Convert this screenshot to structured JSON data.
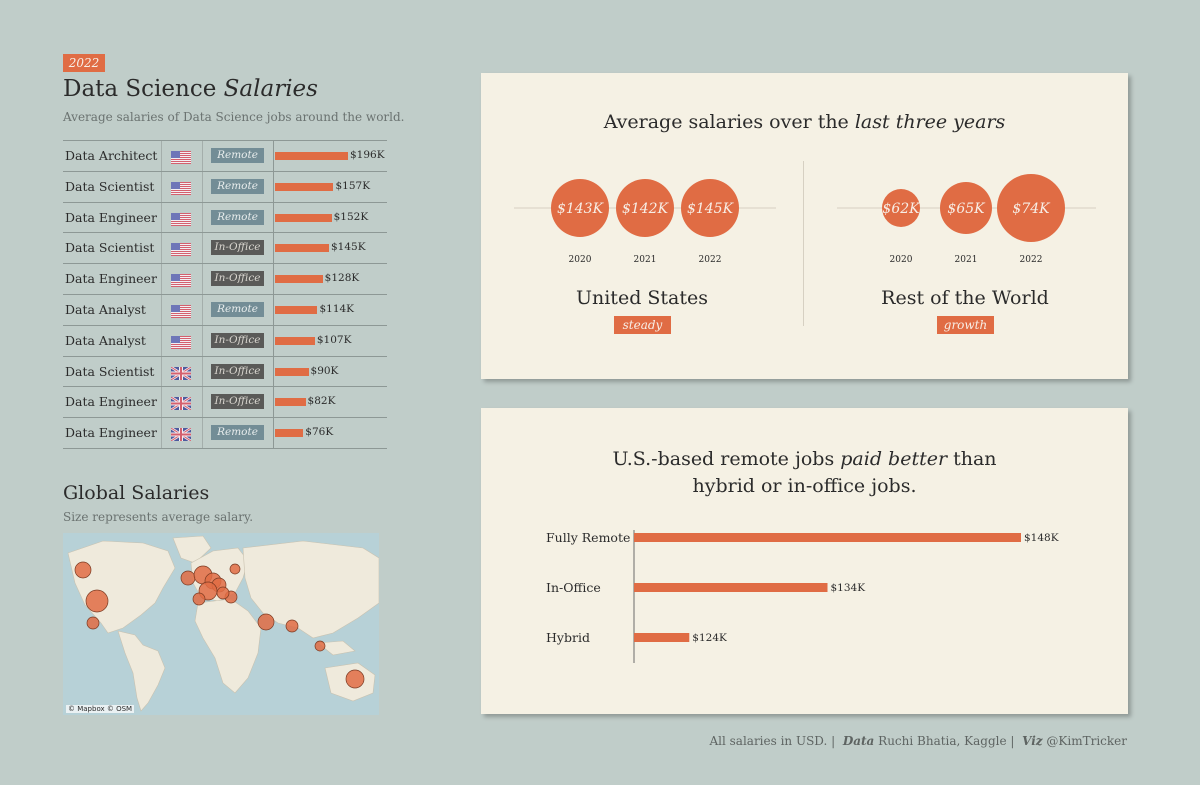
{
  "header": {
    "year_tag": "2022",
    "title_plain": "Data Science",
    "title_italic": "Salaries",
    "subtitle": "Average salaries of Data Science jobs around the world."
  },
  "table": {
    "rows": [
      {
        "job": "Data Architect",
        "country": "US",
        "mode": "Remote",
        "salary": 196,
        "label": "$196K"
      },
      {
        "job": "Data Scientist",
        "country": "US",
        "mode": "Remote",
        "salary": 157,
        "label": "$157K"
      },
      {
        "job": "Data Engineer",
        "country": "US",
        "mode": "Remote",
        "salary": 152,
        "label": "$152K"
      },
      {
        "job": "Data Scientist",
        "country": "US",
        "mode": "In-Office",
        "salary": 145,
        "label": "$145K"
      },
      {
        "job": "Data Engineer",
        "country": "US",
        "mode": "In-Office",
        "salary": 128,
        "label": "$128K"
      },
      {
        "job": "Data Analyst",
        "country": "US",
        "mode": "Remote",
        "salary": 114,
        "label": "$114K"
      },
      {
        "job": "Data Analyst",
        "country": "US",
        "mode": "In-Office",
        "salary": 107,
        "label": "$107K"
      },
      {
        "job": "Data Scientist",
        "country": "UK",
        "mode": "In-Office",
        "salary": 90,
        "label": "$90K"
      },
      {
        "job": "Data Engineer",
        "country": "UK",
        "mode": "In-Office",
        "salary": 82,
        "label": "$82K"
      },
      {
        "job": "Data Engineer",
        "country": "UK",
        "mode": "Remote",
        "salary": 76,
        "label": "$76K"
      }
    ]
  },
  "global": {
    "title": "Global Salaries",
    "subtitle": "Size represents average salary.",
    "map_credit": "© Mapbox © OSM"
  },
  "trend": {
    "title_plain": "Average salaries over the",
    "title_italic": "last three years",
    "us_label": "United States",
    "us_tag": "steady",
    "row_label": "Rest of the World",
    "row_tag": "growth"
  },
  "remote": {
    "title_line1_plain": "U.S.-based remote jobs",
    "title_line1_italic": "paid better",
    "title_line1_end": "than",
    "title_line2": "hybrid or in-office jobs."
  },
  "footer": {
    "prefix": "All salaries in USD.  |",
    "data_label": "Data",
    "data_value": "Ruchi Bhatia, Kaggle  |",
    "viz_label": "Viz",
    "viz_value": "@KimTricker"
  },
  "colors": {
    "accent": "#e06c44",
    "background": "#c0cdc9",
    "card": "#f5f1e4",
    "remote_tag": "#738d96",
    "office_tag": "#5a5a58"
  },
  "chart_data": [
    {
      "type": "bar",
      "title": "Data Science Salaries",
      "categories": [
        "Data Architect",
        "Data Scientist",
        "Data Engineer",
        "Data Scientist",
        "Data Engineer",
        "Data Analyst",
        "Data Analyst",
        "Data Scientist",
        "Data Engineer",
        "Data Engineer"
      ],
      "values": [
        196,
        157,
        152,
        145,
        128,
        114,
        107,
        90,
        82,
        76
      ],
      "labels": [
        "$196K",
        "$157K",
        "$152K",
        "$145K",
        "$128K",
        "$114K",
        "$107K",
        "$90K",
        "$82K",
        "$76K"
      ]
    },
    {
      "type": "scatter",
      "title": "Average salaries over the last three years",
      "series": [
        {
          "name": "United States",
          "x": [
            "2020",
            "2021",
            "2022"
          ],
          "values": [
            143,
            142,
            145
          ],
          "labels": [
            "$143K",
            "$142K",
            "$145K"
          ]
        },
        {
          "name": "Rest of the World",
          "x": [
            "2020",
            "2021",
            "2022"
          ],
          "values": [
            62,
            65,
            74
          ],
          "labels": [
            "$62K",
            "$65K",
            "$74K"
          ]
        }
      ]
    },
    {
      "type": "bar",
      "title": "U.S.-based remote jobs paid better than hybrid or in-office jobs.",
      "categories": [
        "Fully Remote",
        "In-Office",
        "Hybrid"
      ],
      "values": [
        148,
        134,
        124
      ],
      "labels": [
        "$148K",
        "$134K",
        "$124K"
      ],
      "xlim": [
        120,
        150
      ]
    }
  ]
}
